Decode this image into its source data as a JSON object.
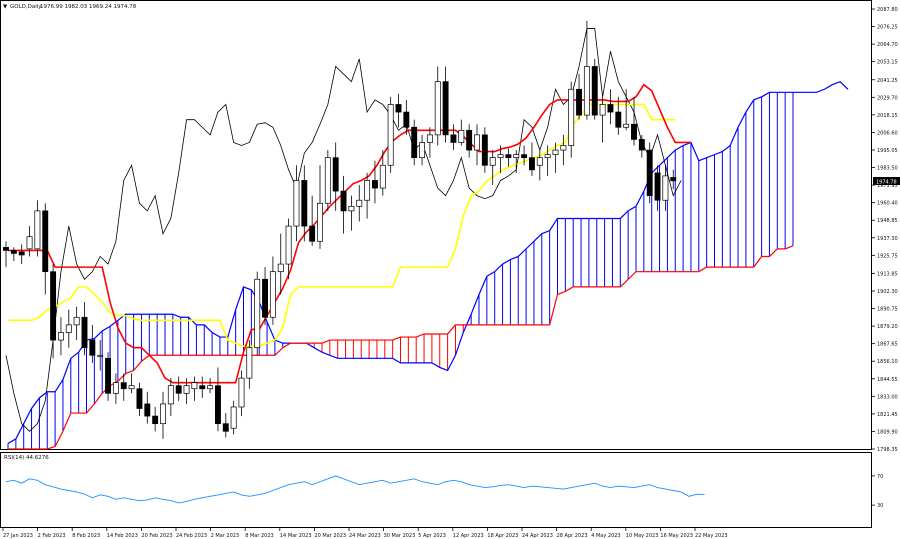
{
  "header": {
    "symbol": "GOLD,Daily",
    "ohlc": "1976.99 1982.03 1969.24 1974.78"
  },
  "rsi_label": "RSI(14) 44.6276",
  "current_price_tag": "1974.78",
  "colors": {
    "background": "#ffffff",
    "candle_up": "#ffffff",
    "candle_down": "#000000",
    "tenkan": "#ff0000",
    "kijun": "#ffff00",
    "chikou": "#000000",
    "span_a": "#0000ff",
    "span_b": "#ff0000",
    "rsi": "#1e90ff"
  },
  "chart_data": [
    {
      "type": "candlestick",
      "title": "GOLD,Daily",
      "subtitle": "1976.99 1982.03 1969.24 1974.78",
      "indicator": "Ichimoku Kinko Hyo",
      "ylim": [
        1798.35,
        2087.8
      ],
      "y_ticks": [
        "2087.80",
        "2076.25",
        "2064.70",
        "2053.15",
        "2041.25",
        "2029.70",
        "2018.15",
        "2006.60",
        "1995.05",
        "1983.50",
        "1971.95",
        "1960.40",
        "1948.85",
        "1937.30",
        "1925.75",
        "1913.85",
        "1902.30",
        "1890.75",
        "1879.20",
        "1867.65",
        "1856.10",
        "1844.55",
        "1833.00",
        "1821.45",
        "1809.90",
        "1798.35"
      ],
      "x_ticks": [
        "27 Jan 2023",
        "2 Feb 2023",
        "8 Feb 2023",
        "14 Feb 2023",
        "20 Feb 2023",
        "24 Feb 2023",
        "2 Mar 2023",
        "8 Mar 2023",
        "14 Mar 2023",
        "20 Mar 2023",
        "24 Mar 2023",
        "30 Mar 2023",
        "5 Apr 2023",
        "12 Apr 2023",
        "18 Apr 2023",
        "24 Apr 2023",
        "28 Apr 2023",
        "4 May 2023",
        "10 May 2023",
        "16 May 2023",
        "22 May 2023"
      ],
      "candles": [
        [
          1931,
          1935,
          1918,
          1929
        ],
        [
          1929,
          1931,
          1922,
          1927
        ],
        [
          1928,
          1933,
          1920,
          1926
        ],
        [
          1930,
          1945,
          1925,
          1938
        ],
        [
          1930,
          1962,
          1925,
          1955
        ],
        [
          1955,
          1960,
          1900,
          1915
        ],
        [
          1915,
          1920,
          1858,
          1870
        ],
        [
          1870,
          1885,
          1860,
          1875
        ],
        [
          1875,
          1890,
          1865,
          1880
        ],
        [
          1880,
          1892,
          1870,
          1885
        ],
        [
          1885,
          1895,
          1860,
          1865
        ],
        [
          1870,
          1880,
          1855,
          1860
        ],
        [
          1860,
          1870,
          1850,
          1860
        ],
        [
          1858,
          1862,
          1830,
          1835
        ],
        [
          1835,
          1848,
          1828,
          1842
        ],
        [
          1842,
          1848,
          1830,
          1838
        ],
        [
          1838,
          1848,
          1835,
          1840
        ],
        [
          1838,
          1842,
          1820,
          1825
        ],
        [
          1828,
          1836,
          1815,
          1820
        ],
        [
          1820,
          1826,
          1810,
          1815
        ],
        [
          1815,
          1836,
          1805,
          1828
        ],
        [
          1828,
          1845,
          1820,
          1840
        ],
        [
          1840,
          1846,
          1830,
          1835
        ],
        [
          1835,
          1845,
          1828,
          1840
        ],
        [
          1838,
          1846,
          1830,
          1842
        ],
        [
          1840,
          1846,
          1832,
          1838
        ],
        [
          1838,
          1845,
          1835,
          1840
        ],
        [
          1840,
          1852,
          1810,
          1815
        ],
        [
          1815,
          1822,
          1806,
          1810
        ],
        [
          1812,
          1830,
          1808,
          1826
        ],
        [
          1826,
          1850,
          1820,
          1845
        ],
        [
          1845,
          1870,
          1838,
          1865
        ],
        [
          1865,
          1915,
          1860,
          1910
        ],
        [
          1910,
          1918,
          1880,
          1885
        ],
        [
          1885,
          1925,
          1880,
          1915
        ],
        [
          1915,
          1940,
          1900,
          1920
        ],
        [
          1920,
          1950,
          1910,
          1945
        ],
        [
          1945,
          1985,
          1935,
          1975
        ],
        [
          1975,
          1985,
          1935,
          1945
        ],
        [
          1945,
          1965,
          1932,
          1935
        ],
        [
          1935,
          1985,
          1930,
          1960
        ],
        [
          1960,
          1995,
          1955,
          1990
        ],
        [
          1990,
          2000,
          1955,
          1968
        ],
        [
          1968,
          1978,
          1940,
          1955
        ],
        [
          1955,
          1965,
          1942,
          1958
        ],
        [
          1958,
          1972,
          1948,
          1962
        ],
        [
          1962,
          1980,
          1950,
          1975
        ],
        [
          1975,
          1988,
          1960,
          1970
        ],
        [
          1970,
          1995,
          1965,
          1985
        ],
        [
          1985,
          2030,
          1980,
          2025
        ],
        [
          2025,
          2032,
          2010,
          2020
        ],
        [
          2020,
          2028,
          2005,
          2010
        ],
        [
          2010,
          2015,
          1985,
          1990
        ],
        [
          1990,
          2005,
          1985,
          2000
        ],
        [
          2000,
          2010,
          1990,
          2005
        ],
        [
          2005,
          2050,
          1998,
          2040
        ],
        [
          2040,
          2050,
          2000,
          2005
        ],
        [
          2005,
          2012,
          1995,
          2000
        ],
        [
          2000,
          2015,
          1998,
          2008
        ],
        [
          2008,
          2012,
          1990,
          1995
        ],
        [
          1995,
          2012,
          1985,
          2005
        ],
        [
          2005,
          2010,
          1980,
          1985
        ],
        [
          1985,
          1995,
          1972,
          1990
        ],
        [
          1990,
          1998,
          1980,
          1992
        ],
        [
          1992,
          1996,
          1984,
          1990
        ],
        [
          1990,
          1995,
          1980,
          1992
        ],
        [
          1992,
          1998,
          1985,
          1990
        ],
        [
          1990,
          2000,
          1978,
          1982
        ],
        [
          1985,
          1995,
          1975,
          1990
        ],
        [
          1990,
          1998,
          1978,
          1992
        ],
        [
          1992,
          2000,
          1980,
          1995
        ],
        [
          1995,
          2005,
          1985,
          1998
        ],
        [
          1998,
          2040,
          1990,
          2035
        ],
        [
          2035,
          2045,
          2015,
          2018
        ],
        [
          2018,
          2080,
          2015,
          2050
        ],
        [
          2050,
          2055,
          2015,
          2018
        ],
        [
          2018,
          2030,
          2000,
          2025
        ],
        [
          2025,
          2035,
          2012,
          2020
        ],
        [
          2020,
          2030,
          2005,
          2010
        ],
        [
          2010,
          2035,
          2008,
          2012
        ],
        [
          2012,
          2030,
          1998,
          2002
        ],
        [
          2002,
          2005,
          1990,
          1995
        ],
        [
          1995,
          2000,
          1960,
          1965
        ],
        [
          1980,
          1985,
          1955,
          1962
        ],
        [
          1962,
          1985,
          1955,
          1978
        ],
        [
          1976.99,
          1982.03,
          1969.24,
          1974.78
        ]
      ],
      "series": [
        {
          "name": "Tenkan-sen",
          "values": [
            1929,
            1929,
            1929,
            1929,
            1929,
            1929,
            1918,
            1918,
            1918,
            1918,
            1918,
            1918,
            1918,
            1895,
            1878,
            1868,
            1865,
            1865,
            1860,
            1855,
            1845,
            1842,
            1842,
            1842,
            1842,
            1842,
            1842,
            1842,
            1842,
            1842,
            1862,
            1877,
            1877,
            1886,
            1895,
            1904,
            1916,
            1934,
            1941,
            1946,
            1952,
            1958,
            1963,
            1968,
            1973,
            1975,
            1978,
            1985,
            1994,
            2001,
            2005,
            2008,
            2008,
            2008,
            2008,
            2008,
            2008,
            2008,
            2004,
            1999,
            1994,
            1994,
            1994,
            1996,
            1997,
            1999,
            2003,
            2010,
            2018,
            2025,
            2028,
            2028,
            2028,
            2028,
            2028,
            2028,
            2028,
            2027,
            2027,
            2027,
            2030,
            2038,
            2034,
            2022,
            2010,
            2000,
            2000,
            2000
          ]
        },
        {
          "name": "Kijun-sen",
          "values": [
            1883,
            1883,
            1883,
            1883,
            1885,
            1890,
            1892,
            1895,
            1898,
            1905,
            1905,
            1900,
            1895,
            1888,
            1886,
            1886,
            1884,
            1883,
            1883,
            1883,
            1883,
            1883,
            1883,
            1883,
            1883,
            1883,
            1883,
            1883,
            1870,
            1868,
            1866,
            1866,
            1866,
            1868,
            1870,
            1878,
            1900,
            1905,
            1905,
            1905,
            1905,
            1905,
            1905,
            1905,
            1905,
            1905,
            1905,
            1905,
            1905,
            1905,
            1918,
            1918,
            1918,
            1918,
            1918,
            1918,
            1918,
            1930,
            1952,
            1965,
            1968,
            1975,
            1978,
            1982,
            1984,
            1986,
            1988,
            1990,
            1992,
            1995,
            1998,
            2000,
            2012,
            2018,
            2025,
            2025,
            2025,
            2025,
            2025,
            2025,
            2025,
            2025,
            2015,
            2015,
            2015,
            2015
          ]
        },
        {
          "name": "Chikou span",
          "values": [
            1860,
            1835,
            1815,
            1810,
            1815,
            1830,
            1870,
            1915,
            1945,
            1920,
            1910,
            1915,
            1925,
            1920,
            1935,
            1975,
            1985,
            1960,
            1955,
            1965,
            1940,
            1950,
            1980,
            2015,
            2015,
            2010,
            2005,
            2020,
            2025,
            2000,
            1998,
            2000,
            2012,
            2013,
            2010,
            1998,
            1982,
            1970,
            1993,
            2000,
            2012,
            2025,
            2050,
            2045,
            2040,
            2055,
            2020,
            2028,
            2025,
            2018,
            2008,
            2012,
            1995,
            2000,
            1985,
            1970,
            1965,
            1975,
            1990,
            1970,
            1965,
            1963,
            1965,
            1975,
            1978,
            1982,
            2015,
            2010,
            1995,
            2010,
            2035,
            2025,
            2030,
            2050,
            2075,
            2075,
            2030,
            2060,
            2040,
            2030,
            2020,
            2000,
            1990,
            2005,
            1985,
            1965,
            1975
          ]
        },
        {
          "name": "Senkou span A",
          "values": [
            1802,
            1805,
            1815,
            1825,
            1832,
            1836,
            1836,
            1844,
            1858,
            1862,
            1870,
            1871,
            1876,
            1879,
            1883,
            1887,
            1887,
            1887,
            1887,
            1887,
            1887,
            1887,
            1885,
            1885,
            1880,
            1880,
            1875,
            1872,
            1872,
            1890,
            1905,
            1903,
            1895,
            1882,
            1870,
            1868,
            1868,
            1868,
            1868,
            1865,
            1862,
            1860,
            1858,
            1858,
            1858,
            1858,
            1858,
            1858,
            1858,
            1858,
            1855,
            1855,
            1855,
            1855,
            1855,
            1852,
            1850,
            1860,
            1875,
            1887,
            1900,
            1912,
            1915,
            1920,
            1923,
            1925,
            1930,
            1935,
            1940,
            1942,
            1950,
            1950,
            1950,
            1950,
            1950,
            1950,
            1950,
            1950,
            1950,
            1955,
            1958,
            1968,
            1980,
            1985,
            1990,
            1995,
            1998,
            2000,
            1988,
            1990,
            1992,
            1994,
            1998,
            2010,
            2020,
            2028,
            2030,
            2033,
            2033,
            2033,
            2033,
            2033,
            2033,
            2033,
            2035,
            2038,
            2040,
            2035
          ]
        },
        {
          "name": "Senkou span B",
          "values": [
            1790,
            1790,
            1790,
            1790,
            1790,
            1795,
            1800,
            1810,
            1822,
            1822,
            1822,
            1828,
            1835,
            1840,
            1843,
            1848,
            1850,
            1856,
            1860,
            1860,
            1860,
            1860,
            1860,
            1860,
            1860,
            1860,
            1860,
            1860,
            1860,
            1860,
            1860,
            1860,
            1860,
            1860,
            1860,
            1865,
            1868,
            1868,
            1868,
            1868,
            1868,
            1870,
            1870,
            1870,
            1870,
            1870,
            1870,
            1870,
            1870,
            1870,
            1872,
            1872,
            1872,
            1874,
            1874,
            1874,
            1874,
            1880,
            1880,
            1880,
            1880,
            1880,
            1880,
            1880,
            1880,
            1880,
            1880,
            1880,
            1880,
            1880,
            1900,
            1902,
            1905,
            1905,
            1905,
            1905,
            1905,
            1905,
            1905,
            1910,
            1915,
            1915,
            1915,
            1915,
            1915,
            1915,
            1915,
            1915,
            1915,
            1918,
            1918,
            1918,
            1918,
            1918,
            1918,
            1918,
            1925,
            1925,
            1930,
            1930,
            1932
          ]
        }
      ]
    },
    {
      "type": "line",
      "title": "RSI(14) 44.6276",
      "ylim": [
        0,
        100
      ],
      "y_ticks": [
        "70",
        "30"
      ],
      "series": [
        {
          "name": "RSI(14)",
          "values": [
            62,
            64,
            60,
            66,
            64,
            58,
            55,
            52,
            50,
            48,
            45,
            40,
            44,
            42,
            38,
            40,
            38,
            36,
            37,
            40,
            38,
            36,
            33,
            35,
            38,
            40,
            42,
            44,
            46,
            48,
            44,
            42,
            44,
            46,
            50,
            54,
            58,
            60,
            62,
            58,
            62,
            66,
            70,
            66,
            62,
            58,
            60,
            62,
            64,
            60,
            62,
            64,
            66,
            62,
            60,
            58,
            62,
            64,
            62,
            58,
            56,
            54,
            55,
            57,
            58,
            56,
            54,
            56,
            55,
            54,
            53,
            52,
            54,
            56,
            58,
            60,
            56,
            54,
            56,
            55,
            54,
            56,
            58,
            54,
            52,
            50,
            48,
            42,
            45,
            44.6
          ]
        }
      ]
    }
  ]
}
